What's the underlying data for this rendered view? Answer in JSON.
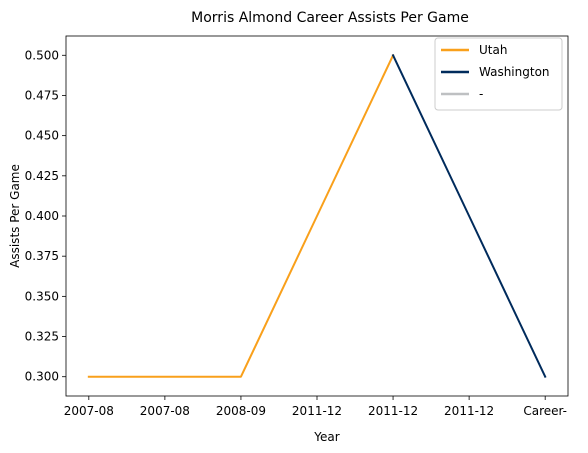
{
  "chart_data": {
    "type": "line",
    "title": "Morris Almond Career Assists Per Game",
    "xlabel": "Year",
    "ylabel": "Assists Per Game",
    "categories": [
      "2007-08",
      "2007-08",
      "2008-09",
      "2011-12",
      "2011-12",
      "2011-12",
      "Career-"
    ],
    "yticks": [
      "0.300",
      "0.325",
      "0.350",
      "0.375",
      "0.400",
      "0.425",
      "0.450",
      "0.475",
      "0.500"
    ],
    "ylim": [
      0.288,
      0.512
    ],
    "grid": false,
    "legend_position": "top-right",
    "series": [
      {
        "name": "Utah",
        "color": "#F9A01B",
        "points": [
          {
            "x": 0,
            "y": 0.3
          },
          {
            "x": 1,
            "y": 0.3
          },
          {
            "x": 2,
            "y": 0.3
          },
          {
            "x": 3,
            "y": 0.4
          },
          {
            "x": 4,
            "y": 0.5
          }
        ]
      },
      {
        "name": "Washington",
        "color": "#002B5C",
        "points": [
          {
            "x": 4,
            "y": 0.5
          },
          {
            "x": 5,
            "y": 0.4
          },
          {
            "x": 6,
            "y": 0.3
          }
        ]
      },
      {
        "name": "-",
        "color": "#BEC0C2",
        "points": []
      }
    ]
  }
}
